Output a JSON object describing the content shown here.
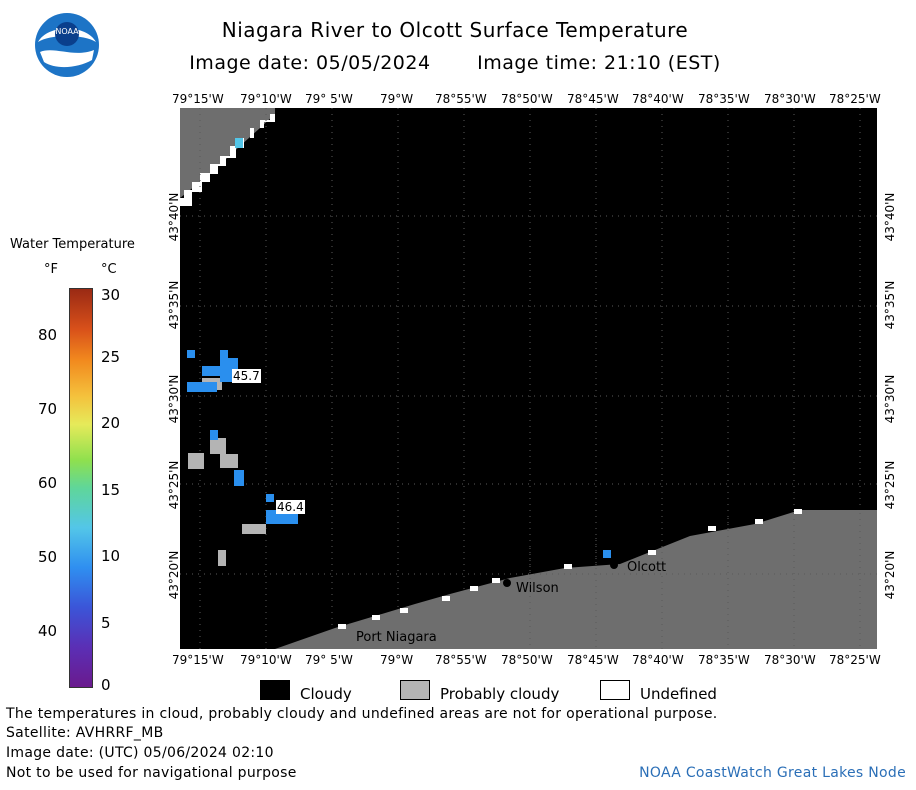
{
  "header": {
    "title": "Niagara River to Olcott Surface Temperature",
    "image_date": "Image date: 05/05/2024",
    "image_time": "Image time: 21:10 (EST)"
  },
  "logo": {
    "text": "NOAA",
    "colors": {
      "outer": "#1d74c6",
      "inner": "#ffffff",
      "bird": "#0a3f8c"
    }
  },
  "axes": {
    "lon_ticks": [
      "79°15'W",
      "79°10'W",
      "79° 5'W",
      "79°W",
      "78°55'W",
      "78°50'W",
      "78°45'W",
      "78°40'W",
      "78°35'W",
      "78°30'W",
      "78°25'W"
    ],
    "lat_ticks": [
      "43°40'N",
      "43°35'N",
      "43°30'N",
      "43°25'N",
      "43°20'N"
    ]
  },
  "legend": {
    "title": "Water Temperature",
    "unit_f": "°F",
    "unit_c": "°C",
    "f_ticks": [
      "80",
      "70",
      "60",
      "50",
      "40"
    ],
    "c_ticks": [
      "30",
      "25",
      "20",
      "15",
      "10",
      "5",
      "0"
    ]
  },
  "map": {
    "places": [
      "Port Niagara",
      "Wilson",
      "Olcott"
    ],
    "temp_labels": [
      "45.7",
      "46.4"
    ],
    "colors": {
      "cloud": "#000000",
      "probably_cloudy": "#b4b4b4",
      "land": "#6e6e6e",
      "undefined": "#ffffff",
      "water_cold": "#2a8fee"
    }
  },
  "key": {
    "cloudy": "Cloudy",
    "probably_cloudy": "Probably cloudy",
    "undefined": "Undefined"
  },
  "footer": {
    "note": "The temperatures in cloud, probably cloudy and undefined areas are not for operational purpose.",
    "satellite": "Satellite: AVHRRF_MB",
    "utc_date": "Image date: (UTC) 05/06/2024  02:10",
    "nav": "Not to be used for navigational purpose",
    "credit": "NOAA CoastWatch Great Lakes Node"
  }
}
